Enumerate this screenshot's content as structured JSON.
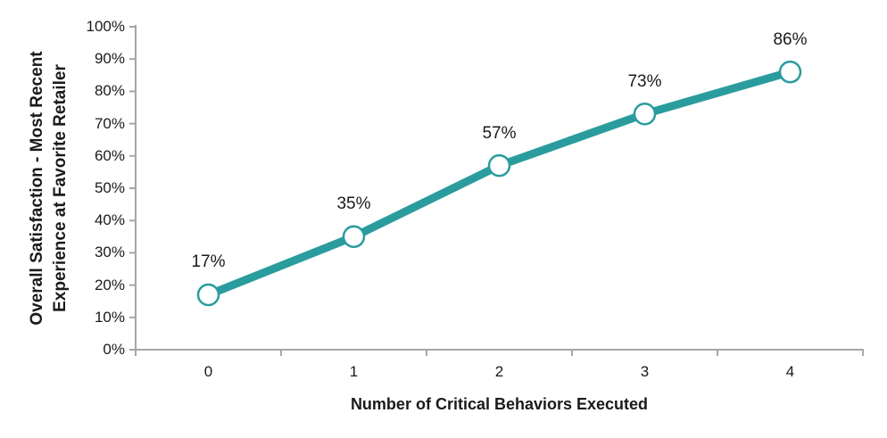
{
  "chart_data": {
    "type": "line",
    "categories": [
      "0",
      "1",
      "2",
      "3",
      "4"
    ],
    "values": [
      17,
      35,
      57,
      73,
      86
    ],
    "point_labels": [
      "17%",
      "35%",
      "57%",
      "73%",
      "86%"
    ],
    "y_tick_labels": [
      "0%",
      "10%",
      "20%",
      "30%",
      "40%",
      "50%",
      "60%",
      "70%",
      "80%",
      "90%",
      "100%"
    ],
    "y_tick_values": [
      0,
      10,
      20,
      30,
      40,
      50,
      60,
      70,
      80,
      90,
      100
    ],
    "ylim": [
      0,
      100
    ],
    "xlabel": "Number of Critical Behaviors Executed",
    "ylabel_line1": "Overall Satisfaction - Most Recent",
    "ylabel_line2": "Experience at Favorite Retailer",
    "grid": false,
    "legend": "none",
    "colors": {
      "line": "#2A9C9E",
      "marker_fill": "#FFFFFF",
      "axis": "#A6A6A6",
      "text": "#1A1A1A"
    }
  }
}
